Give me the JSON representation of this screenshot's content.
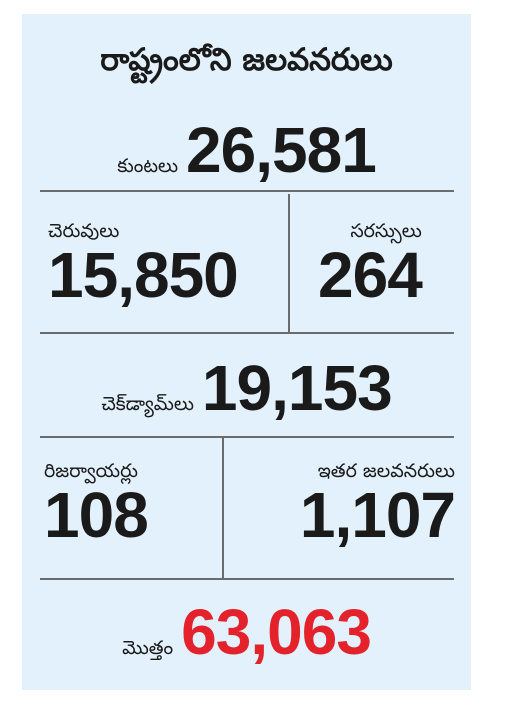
{
  "title": "రాష్ట్రంలోని జలవనరులు",
  "ponds": {
    "label": "కుంటలు",
    "value": "26,581"
  },
  "tanks": {
    "label": "చెరువులు",
    "value": "15,850"
  },
  "lakes": {
    "label": "సరస్సులు",
    "value": "264"
  },
  "check_dams": {
    "label": "చెక్‌డ్యామ్‌లు",
    "value": "19,153"
  },
  "reservoirs": {
    "label": "రిజర్వాయర్లు",
    "value": "108"
  },
  "other": {
    "label": "ఇతర జలవనరులు",
    "value": "1,107"
  },
  "total": {
    "label": "మొత్తం",
    "value": "63,063"
  },
  "colors": {
    "background": "#e2f1fb",
    "text": "#1a1a1a",
    "total_value": "#e3222c",
    "divider": "#6b6b6b"
  }
}
